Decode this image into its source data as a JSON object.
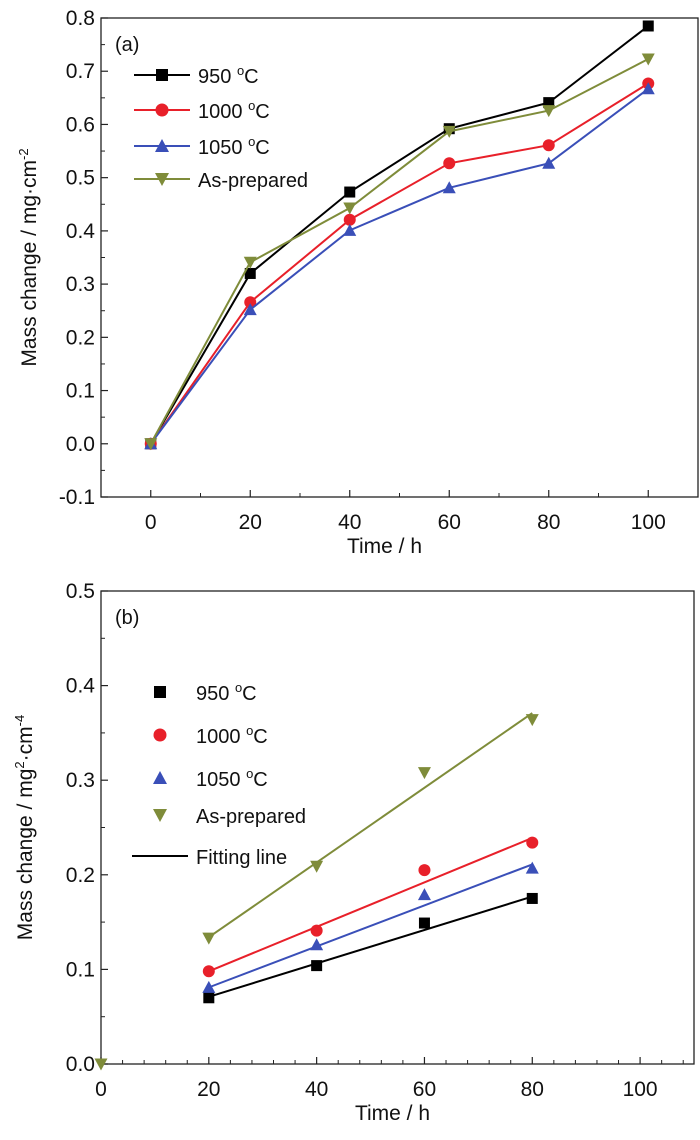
{
  "chart_data": [
    {
      "type": "line",
      "panel_label": "(a)",
      "xlabel": "Time / h",
      "ylabel": "Mass change / mg·cm",
      "ylabel_sup": "-2",
      "xlim": [
        -10,
        110
      ],
      "ylim": [
        -0.1,
        0.8
      ],
      "xticks": [
        0,
        20,
        40,
        60,
        80,
        100
      ],
      "yticks": [
        -0.1,
        0.0,
        0.1,
        0.2,
        0.3,
        0.4,
        0.5,
        0.6,
        0.7,
        0.8
      ],
      "ytick_labels": [
        "-0.1",
        "0.0",
        "0.1",
        "0.2",
        "0.3",
        "0.4",
        "0.5",
        "0.6",
        "0.7",
        "0.8"
      ],
      "grid": false,
      "legend_position": "top-left",
      "series": [
        {
          "name": "950 °C",
          "label_main": "950 ",
          "label_sup": "o",
          "label_unit": "C",
          "color": "#000000",
          "marker": "square",
          "x": [
            0,
            20,
            40,
            60,
            80,
            100
          ],
          "values": [
            0,
            0.32,
            0.473,
            0.592,
            0.641,
            0.785
          ]
        },
        {
          "name": "1000 °C",
          "label_main": "1000 ",
          "label_sup": "o",
          "label_unit": "C",
          "color": "#e8202a",
          "marker": "circle",
          "x": [
            0,
            20,
            40,
            60,
            80,
            100
          ],
          "values": [
            0,
            0.266,
            0.421,
            0.527,
            0.561,
            0.677
          ]
        },
        {
          "name": "1050 °C",
          "label_main": "1050 ",
          "label_sup": "o",
          "label_unit": "C",
          "color": "#3a4fb8",
          "marker": "triangle-up",
          "x": [
            0,
            20,
            40,
            60,
            80,
            100
          ],
          "values": [
            0,
            0.252,
            0.401,
            0.481,
            0.527,
            0.667
          ]
        },
        {
          "name": "As-prepared",
          "label_main": "As-prepared",
          "label_sup": "",
          "label_unit": "",
          "color": "#7f8c3a",
          "marker": "triangle-down",
          "x": [
            0,
            20,
            40,
            60,
            80,
            100
          ],
          "values": [
            0,
            0.341,
            0.443,
            0.587,
            0.626,
            0.723
          ]
        }
      ]
    },
    {
      "type": "scatter",
      "panel_label": "(b)",
      "xlabel": "Time / h",
      "ylabel": "Mass change / mg",
      "ylabel_sup": "2",
      "ylabel_mid": "·cm",
      "ylabel_sup2": "-4",
      "xlim": [
        0,
        110
      ],
      "ylim": [
        0,
        0.5
      ],
      "xticks": [
        0,
        20,
        40,
        60,
        80,
        100
      ],
      "yticks": [
        0.0,
        0.1,
        0.2,
        0.3,
        0.4,
        0.5
      ],
      "ytick_labels": [
        "0.0",
        "0.1",
        "0.2",
        "0.3",
        "0.4",
        "0.5"
      ],
      "grid": false,
      "legend_position": "top-left",
      "fit_label": "Fitting line",
      "series": [
        {
          "name": "950 °C",
          "label_main": "950 ",
          "label_sup": "o",
          "label_unit": "C",
          "color": "#000000",
          "marker": "square",
          "x": [
            20,
            40,
            60,
            80
          ],
          "values": [
            0.07,
            0.104,
            0.149,
            0.175
          ],
          "fit": [
            [
              20,
              0.071
            ],
            [
              80,
              0.177
            ]
          ]
        },
        {
          "name": "1000 °C",
          "label_main": "1000 ",
          "label_sup": "o",
          "label_unit": "C",
          "color": "#e8202a",
          "marker": "circle",
          "x": [
            20,
            40,
            60,
            80
          ],
          "values": [
            0.098,
            0.141,
            0.205,
            0.234
          ],
          "fit": [
            [
              20,
              0.098
            ],
            [
              80,
              0.239
            ]
          ]
        },
        {
          "name": "1050 °C",
          "label_main": "1050 ",
          "label_sup": "o",
          "label_unit": "C",
          "color": "#3a4fb8",
          "marker": "triangle-up",
          "x": [
            20,
            40,
            60,
            80
          ],
          "values": [
            0.081,
            0.126,
            0.179,
            0.207
          ],
          "fit": [
            [
              20,
              0.081
            ],
            [
              80,
              0.211
            ]
          ]
        },
        {
          "name": "As-prepared",
          "label_main": "As-prepared",
          "label_sup": "",
          "label_unit": "",
          "color": "#7f8c3a",
          "marker": "triangle-down",
          "x": [
            0,
            20,
            40,
            60,
            80
          ],
          "values": [
            0,
            0.133,
            0.209,
            0.308,
            0.364
          ],
          "fit": [
            [
              20,
              0.134
            ],
            [
              80,
              0.371
            ]
          ]
        }
      ]
    }
  ]
}
